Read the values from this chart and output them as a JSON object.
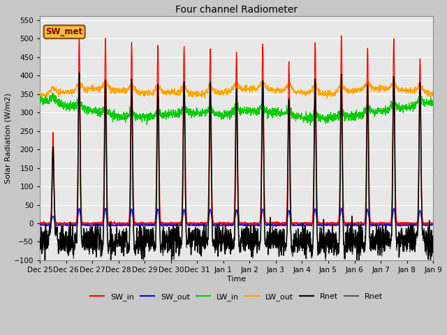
{
  "title": "Four channel Radiometer",
  "xlabel": "Time",
  "ylabel": "Solar Radiation (W/m2)",
  "ylim": [
    -100,
    560
  ],
  "yticks": [
    -100,
    -50,
    0,
    50,
    100,
    150,
    200,
    250,
    300,
    350,
    400,
    450,
    500,
    550
  ],
  "fig_bg_color": "#c8c8c8",
  "plot_bg_color": "#e8e8e8",
  "annotation_label": "SW_met",
  "annotation_box_facecolor": "#f0c040",
  "annotation_box_edgecolor": "#8B4513",
  "annotation_text_color": "#8B0000",
  "legend_entries": [
    "SW_in",
    "SW_out",
    "LW_in",
    "LW_out",
    "Rnet",
    "Rnet"
  ],
  "legend_colors": [
    "#ff0000",
    "#0000ff",
    "#00cc00",
    "#ffa500",
    "#000000",
    "#555555"
  ],
  "x_tick_labels": [
    "Dec 25",
    "Dec 26",
    "Dec 27",
    "Dec 28",
    "Dec 29",
    "Dec 30",
    "Dec 31",
    "Jan 1",
    "Jan 2",
    "Jan 3",
    "Jan 4",
    "Jan 5",
    "Jan 6",
    "Jan 7",
    "Jan 8",
    "Jan 9"
  ],
  "grid_color": "#ffffff",
  "sw_in_peaks": [
    245,
    500,
    500,
    490,
    485,
    480,
    475,
    465,
    490,
    440,
    490,
    510,
    475,
    500,
    445
  ],
  "lw_in_base": 295,
  "lw_out_base": 345
}
